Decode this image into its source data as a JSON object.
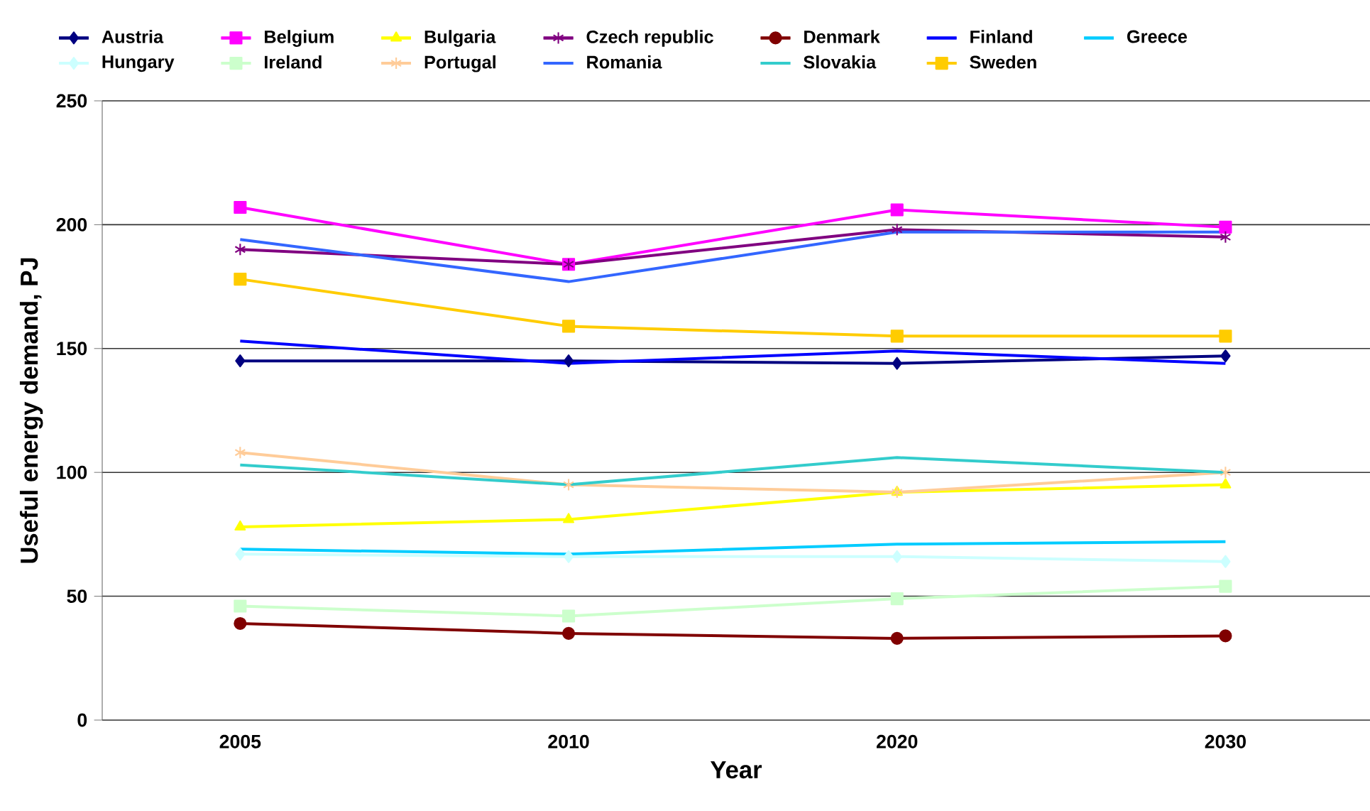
{
  "chart_data": {
    "type": "line",
    "xlabel": "Year",
    "ylabel": "Useful energy demand, PJ",
    "categories": [
      "2005",
      "2010",
      "2020",
      "2030"
    ],
    "ylim": [
      0,
      250
    ],
    "yticks": [
      0,
      50,
      100,
      150,
      200,
      250
    ],
    "grid": "y",
    "legend": "top",
    "line_style": "solid",
    "series": [
      {
        "name": "Austria",
        "color": "#000080",
        "marker": "diamond",
        "values": [
          145,
          145,
          144,
          147
        ]
      },
      {
        "name": "Belgium",
        "color": "#ff00ff",
        "marker": "square",
        "values": [
          207,
          184,
          206,
          199
        ]
      },
      {
        "name": "Bulgaria",
        "color": "#ffff00",
        "marker": "triangle",
        "values": [
          78,
          81,
          92,
          95
        ]
      },
      {
        "name": "Czech republic",
        "color": "#800080",
        "marker": "cross",
        "values": [
          190,
          184,
          198,
          195
        ]
      },
      {
        "name": "Denmark",
        "color": "#800000",
        "marker": "circle",
        "values": [
          39,
          35,
          33,
          34
        ]
      },
      {
        "name": "Finland",
        "color": "#0000ff",
        "marker": "none",
        "values": [
          153,
          144,
          149,
          144
        ]
      },
      {
        "name": "Greece",
        "color": "#00ccff",
        "marker": "none",
        "values": [
          69,
          67,
          71,
          72
        ]
      },
      {
        "name": "Hungary",
        "color": "#ccffff",
        "marker": "diamond",
        "values": [
          67,
          66,
          66,
          64
        ]
      },
      {
        "name": "Ireland",
        "color": "#ccffcc",
        "marker": "square",
        "values": [
          46,
          42,
          49,
          54
        ]
      },
      {
        "name": "Portugal",
        "color": "#ffcc99",
        "marker": "cross",
        "values": [
          108,
          95,
          92,
          100
        ]
      },
      {
        "name": "Romania",
        "color": "#3366ff",
        "marker": "none",
        "values": [
          194,
          177,
          197,
          197
        ]
      },
      {
        "name": "Slovakia",
        "color": "#33cccc",
        "marker": "none",
        "values": [
          103,
          95,
          106,
          100
        ]
      },
      {
        "name": "Sweden",
        "color": "#ffcc00",
        "marker": "square",
        "values": [
          178,
          159,
          155,
          155
        ]
      }
    ]
  }
}
